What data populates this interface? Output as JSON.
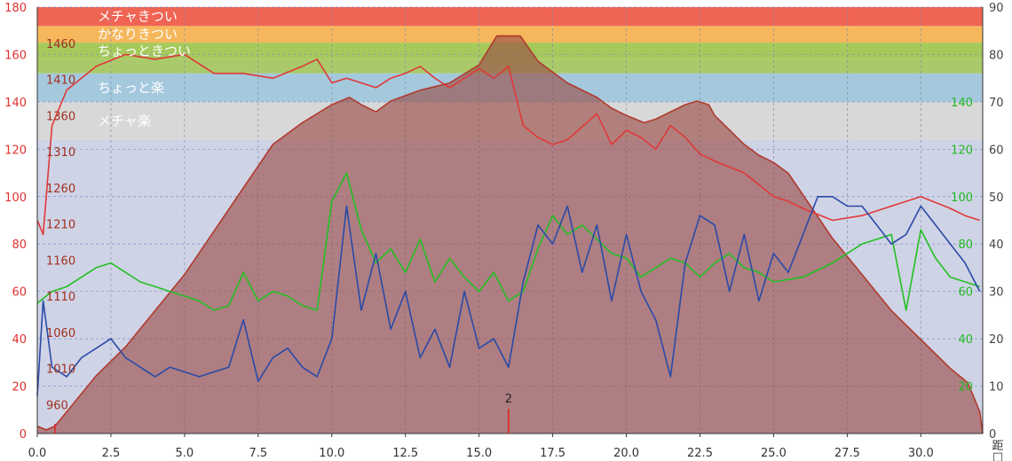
{
  "chart_data": {
    "type": "area",
    "title": "",
    "xlabel": "",
    "x_unit_glyph": "距",
    "x_unit_glyph2": "□",
    "xlim": [
      0,
      32.1
    ],
    "x_ticks": [
      "0.0",
      "2.5",
      "5.0",
      "7.5",
      "10.0",
      "12.5",
      "15.0",
      "17.5",
      "20.0",
      "22.5",
      "25.0",
      "27.5",
      "30.0"
    ],
    "x_tick_values": [
      0,
      2.5,
      5,
      7.5,
      10,
      12.5,
      15,
      17.5,
      20,
      22.5,
      25,
      27.5,
      30
    ],
    "left_axis": {
      "ticks": [
        "0",
        "20",
        "40",
        "60",
        "80",
        "100",
        "120",
        "140",
        "160",
        "180"
      ],
      "values": [
        0,
        20,
        40,
        60,
        80,
        100,
        120,
        140,
        160,
        180
      ],
      "ylim": [
        0,
        180
      ],
      "color": "#e03030"
    },
    "elevation_axis": {
      "ticks": [
        "960",
        "1010",
        "1060",
        "1110",
        "1160",
        "1210",
        "1260",
        "1310",
        "1360",
        "1410",
        "1460"
      ],
      "values": [
        960,
        1010,
        1060,
        1110,
        1160,
        1210,
        1260,
        1310,
        1360,
        1410,
        1460
      ],
      "ylim": [
        920,
        1510
      ],
      "color": "#a03020"
    },
    "green_axis": {
      "ticks": [
        "20",
        "40",
        "60",
        "80",
        "100",
        "120",
        "140"
      ],
      "values": [
        20,
        40,
        60,
        80,
        100,
        120,
        140
      ],
      "ylim": [
        0,
        180
      ],
      "color": "#22bb22"
    },
    "right_axis": {
      "ticks": [
        "0",
        "10",
        "20",
        "30",
        "40",
        "50",
        "60",
        "70",
        "80",
        "90"
      ],
      "values": [
        0,
        10,
        20,
        30,
        40,
        50,
        60,
        70,
        80,
        90
      ],
      "ylim": [
        0,
        90
      ],
      "color": "#2050a0"
    },
    "zones": [
      {
        "label": "メチャきつい",
        "min": 172,
        "max": 180,
        "color": "#f06454"
      },
      {
        "label": "かなりきつい",
        "min": 165,
        "max": 172,
        "color": "#f6b75c"
      },
      {
        "label": "ちょっときつい",
        "min": 158,
        "max": 165,
        "color": "#a6c95c"
      },
      {
        "label": "",
        "min": 152,
        "max": 158,
        "color": "#a9c96a"
      },
      {
        "label": "ちょっと楽",
        "min": 140,
        "max": 152,
        "color": "#a4c8dc"
      },
      {
        "label": "メチャ楽",
        "min": 124,
        "max": 140,
        "color": "#d8d8d8"
      }
    ],
    "marker": {
      "label": "2",
      "x": 16.0
    },
    "start_marker": {
      "x": 0.6
    },
    "series": [
      {
        "axis": "elevation",
        "color": "#b03a2e",
        "fill": "#9a4a44",
        "x": [
          0,
          0.3,
          0.6,
          1,
          2,
          3,
          4,
          5,
          6,
          7,
          8,
          9,
          10,
          10.6,
          11,
          11.5,
          12,
          13,
          14,
          15,
          15.6,
          16.4,
          17,
          18,
          19,
          19.5,
          20,
          20.6,
          21,
          21.5,
          22,
          22.4,
          22.8,
          23,
          23.5,
          24,
          24.5,
          25,
          25.5,
          26,
          26.5,
          27,
          28,
          29,
          30,
          31,
          31.6,
          32,
          32.1
        ],
        "y": [
          930,
          925,
          930,
          950,
          1000,
          1040,
          1090,
          1140,
          1200,
          1260,
          1320,
          1350,
          1375,
          1385,
          1375,
          1365,
          1380,
          1395,
          1405,
          1430,
          1470,
          1470,
          1435,
          1405,
          1385,
          1370,
          1360,
          1350,
          1355,
          1365,
          1375,
          1380,
          1375,
          1360,
          1340,
          1320,
          1305,
          1295,
          1280,
          1250,
          1220,
          1190,
          1140,
          1090,
          1050,
          1010,
          990,
          950,
          920
        ]
      },
      {
        "axis": "left",
        "color": "#e03838",
        "x": [
          0,
          0.2,
          0.5,
          1,
          2,
          3,
          4,
          5,
          6,
          7,
          8,
          9,
          9.5,
          10,
          10.5,
          11,
          11.5,
          12,
          12.5,
          13,
          13.5,
          14,
          15,
          15.5,
          16,
          16.5,
          17,
          17.5,
          18,
          19,
          19.5,
          20,
          20.5,
          21,
          21.5,
          22,
          22.5,
          23,
          24,
          24.5,
          25,
          25.5,
          26,
          27,
          28,
          29,
          30,
          31,
          31.5,
          32
        ],
        "y": [
          90,
          84,
          130,
          145,
          155,
          160,
          158,
          160,
          152,
          152,
          150,
          155,
          158,
          148,
          150,
          148,
          146,
          150,
          152,
          155,
          150,
          146,
          154,
          150,
          155,
          130,
          125,
          122,
          124,
          135,
          122,
          128,
          125,
          120,
          130,
          125,
          118,
          115,
          110,
          105,
          100,
          98,
          95,
          90,
          92,
          96,
          100,
          95,
          92,
          90
        ]
      },
      {
        "axis": "green",
        "color": "#22c022",
        "x": [
          0,
          0.5,
          1,
          1.5,
          2,
          2.5,
          3,
          3.5,
          4,
          4.5,
          5,
          5.5,
          6,
          6.5,
          7,
          7.5,
          8,
          8.5,
          9,
          9.5,
          10,
          10.5,
          11,
          11.5,
          12,
          12.5,
          13,
          13.5,
          14,
          14.5,
          15,
          15.5,
          16,
          16.5,
          17,
          17.5,
          18,
          18.5,
          19,
          19.5,
          20,
          20.5,
          21,
          21.5,
          22,
          22.5,
          23,
          23.5,
          24,
          24.5,
          25,
          26,
          27,
          28,
          29,
          29.5,
          30,
          30.5,
          31,
          32
        ],
        "y": [
          55,
          60,
          62,
          66,
          70,
          72,
          68,
          64,
          62,
          60,
          58,
          56,
          52,
          54,
          68,
          56,
          60,
          58,
          54,
          52,
          98,
          110,
          86,
          72,
          78,
          68,
          82,
          64,
          74,
          66,
          60,
          68,
          56,
          60,
          78,
          92,
          84,
          88,
          82,
          76,
          74,
          66,
          70,
          74,
          72,
          66,
          72,
          76,
          70,
          68,
          64,
          66,
          72,
          80,
          84,
          52,
          86,
          74,
          66,
          62
        ]
      },
      {
        "axis": "right",
        "color": "#2a4aa8",
        "x": [
          0,
          0.2,
          0.5,
          1,
          1.5,
          2,
          2.5,
          3,
          3.5,
          4,
          4.5,
          5,
          5.5,
          6,
          6.5,
          7,
          7.5,
          8,
          8.5,
          9,
          9.5,
          10,
          10.5,
          11,
          11.5,
          12,
          12.5,
          13,
          13.5,
          14,
          14.5,
          15,
          15.5,
          16,
          16.5,
          17,
          17.5,
          18,
          18.5,
          19,
          19.5,
          20,
          20.5,
          21,
          21.5,
          22,
          22.5,
          23,
          23.5,
          24,
          24.5,
          25,
          25.5,
          26,
          26.5,
          27,
          27.5,
          28,
          28.5,
          29,
          29.5,
          30,
          30.5,
          31,
          31.5,
          32
        ],
        "y": [
          8,
          28,
          14,
          12,
          16,
          18,
          20,
          16,
          14,
          12,
          14,
          13,
          12,
          13,
          14,
          24,
          11,
          16,
          18,
          14,
          12,
          20,
          48,
          26,
          38,
          22,
          30,
          16,
          22,
          14,
          30,
          18,
          20,
          14,
          32,
          44,
          40,
          48,
          34,
          44,
          28,
          42,
          30,
          24,
          12,
          36,
          46,
          44,
          30,
          42,
          28,
          38,
          34,
          42,
          50,
          50,
          48,
          48,
          44,
          40,
          42,
          48,
          44,
          40,
          36,
          30
        ]
      }
    ]
  }
}
